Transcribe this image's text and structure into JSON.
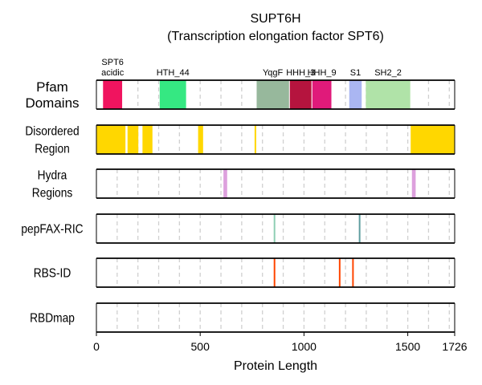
{
  "chart_data": {
    "type": "protein-feature-tracks",
    "title": "SUPT6H",
    "subtitle": "(Transcription elongation factor SPT6)",
    "xlabel": "Protein Length",
    "xlim": [
      0,
      1726
    ],
    "xticks": [
      0,
      500,
      1000,
      1500,
      1726
    ],
    "grid_x": [
      100,
      200,
      300,
      400,
      500,
      600,
      700,
      800,
      900,
      1000,
      1100,
      1200,
      1300,
      1400,
      1500,
      1600,
      1700
    ],
    "grid": true,
    "tracks": [
      {
        "label_lines": [
          "Pfam",
          "Domains"
        ],
        "kind": "bars",
        "items": [
          {
            "start": 32,
            "end": 124,
            "color": "#f0145f",
            "label_lines": [
              "SPT6",
              "acidic"
            ]
          },
          {
            "start": 305,
            "end": 432,
            "color": "#35e882",
            "label_lines": [
              "HTH_44"
            ]
          },
          {
            "start": 772,
            "end": 928,
            "color": "#97b89c",
            "label_lines": [
              "YqgF"
            ]
          },
          {
            "start": 932,
            "end": 1036,
            "color": "#b5143e",
            "label_lines": [
              "HHH_3"
            ]
          },
          {
            "start": 1040,
            "end": 1132,
            "color": "#e01a7a",
            "label_lines": [
              "HHH_9"
            ]
          },
          {
            "start": 1218,
            "end": 1278,
            "color": "#aab6f2",
            "label_lines": [
              "S1"
            ]
          },
          {
            "start": 1298,
            "end": 1512,
            "color": "#b0e3a8",
            "label_lines": [
              "SH2_2"
            ]
          }
        ]
      },
      {
        "label_lines": [
          "Disordered",
          "Region"
        ],
        "kind": "bars",
        "items": [
          {
            "start": 0,
            "end": 140,
            "color": "#ffd700"
          },
          {
            "start": 150,
            "end": 202,
            "color": "#ffd700"
          },
          {
            "start": 222,
            "end": 270,
            "color": "#ffd700"
          },
          {
            "start": 490,
            "end": 514,
            "color": "#ffd700"
          },
          {
            "start": 762,
            "end": 770,
            "color": "#ffd700"
          },
          {
            "start": 1514,
            "end": 1726,
            "color": "#ffd700"
          }
        ]
      },
      {
        "label_lines": [
          "Hydra",
          "Regions"
        ],
        "kind": "bars",
        "items": [
          {
            "start": 612,
            "end": 630,
            "color": "#dda0dd"
          },
          {
            "start": 1520,
            "end": 1538,
            "color": "#dda0dd"
          }
        ]
      },
      {
        "label_lines": [
          "pepFAX-RIC"
        ],
        "kind": "lines",
        "items": [
          {
            "pos": 858,
            "color": "#8fcfb4"
          },
          {
            "pos": 1268,
            "color": "#5f9ea0"
          }
        ]
      },
      {
        "label_lines": [
          "RBS-ID"
        ],
        "kind": "lines",
        "items": [
          {
            "pos": 858,
            "color": "#ff4500"
          },
          {
            "pos": 1172,
            "color": "#ff4500"
          },
          {
            "pos": 1236,
            "color": "#ff4500"
          }
        ]
      },
      {
        "label_lines": [
          "RBDmap"
        ],
        "kind": "lines",
        "items": []
      }
    ]
  }
}
